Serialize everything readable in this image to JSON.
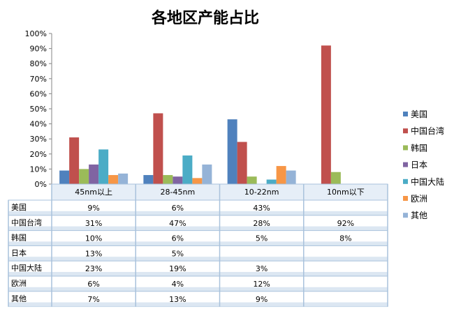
{
  "chart_data": {
    "type": "bar",
    "title": "各地区产能占比",
    "categories": [
      "45nm以上",
      "28-45nm",
      "10-22nm",
      "10nm以下"
    ],
    "ylim": [
      0,
      100
    ],
    "yticks": [
      "0%",
      "10%",
      "20%",
      "30%",
      "40%",
      "50%",
      "60%",
      "70%",
      "80%",
      "90%",
      "100%"
    ],
    "grid": false,
    "legend": "right",
    "data_table": true,
    "series": [
      {
        "name": "美国",
        "color": "#4F81BD",
        "values": [
          9,
          6,
          43,
          null
        ],
        "labels": [
          "9%",
          "6%",
          "43%",
          ""
        ]
      },
      {
        "name": "中国台湾",
        "color": "#C0504D",
        "values": [
          31,
          47,
          28,
          92
        ],
        "labels": [
          "31%",
          "47%",
          "28%",
          "92%"
        ]
      },
      {
        "name": "韩国",
        "color": "#9BBB59",
        "values": [
          10,
          6,
          5,
          8
        ],
        "labels": [
          "10%",
          "6%",
          "5%",
          "8%"
        ]
      },
      {
        "name": "日本",
        "color": "#8064A2",
        "values": [
          13,
          5,
          null,
          null
        ],
        "labels": [
          "13%",
          "5%",
          "",
          ""
        ]
      },
      {
        "name": "中国大陆",
        "color": "#4BACC6",
        "values": [
          23,
          19,
          3,
          null
        ],
        "labels": [
          "23%",
          "19%",
          "3%",
          ""
        ]
      },
      {
        "name": "欧洲",
        "color": "#F79646",
        "values": [
          6,
          4,
          12,
          null
        ],
        "labels": [
          "6%",
          "4%",
          "12%",
          ""
        ]
      },
      {
        "name": "其他",
        "color": "#95B3D7",
        "values": [
          7,
          13,
          9,
          null
        ],
        "labels": [
          "7%",
          "13%",
          "9%",
          ""
        ]
      }
    ]
  }
}
